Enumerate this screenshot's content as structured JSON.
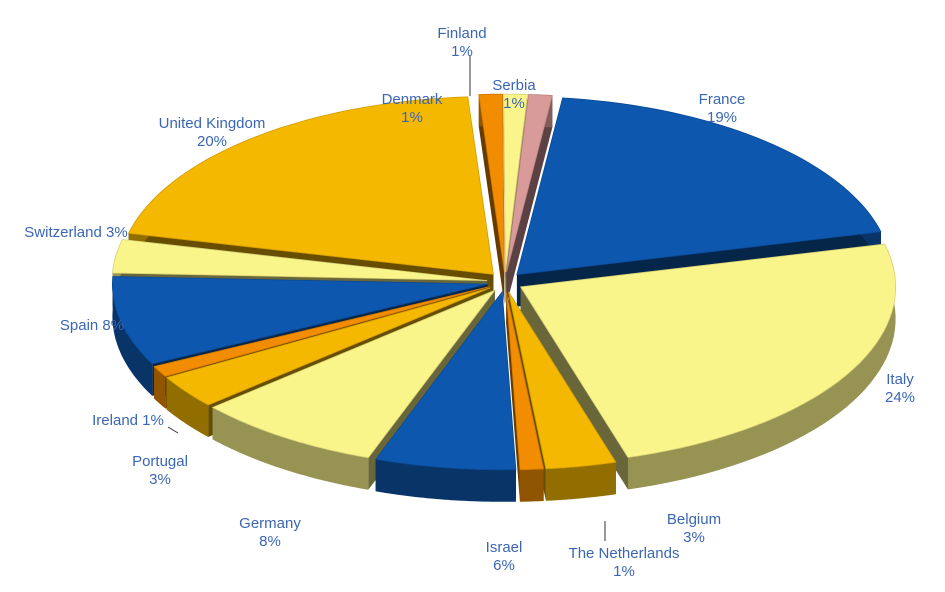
{
  "chart_data": {
    "type": "pie",
    "title": "",
    "style": "3d-exploded",
    "legend": "none",
    "slices": [
      {
        "name": "France",
        "value": 19,
        "label": "19%",
        "color": "#0D57AE"
      },
      {
        "name": "Italy",
        "value": 24,
        "label": "24%",
        "color": "#FAF58A"
      },
      {
        "name": "Belgium",
        "value": 3,
        "label": "3%",
        "color": "#F4B800"
      },
      {
        "name": "The Netherlands",
        "value": 1,
        "label": "1%",
        "color": "#F28C00"
      },
      {
        "name": "Israel",
        "value": 6,
        "label": "6%",
        "color": "#0D57AE"
      },
      {
        "name": "Germany",
        "value": 8,
        "label": "8%",
        "color": "#FAF58A"
      },
      {
        "name": "Portugal",
        "value": 3,
        "label": "3%",
        "color": "#F4B800"
      },
      {
        "name": "Ireland",
        "value": 1,
        "label": "1%",
        "color": "#F28C00"
      },
      {
        "name": "Spain",
        "value": 8,
        "label": "8%",
        "color": "#0D57AE"
      },
      {
        "name": "Switzerland",
        "value": 3,
        "label": "3%",
        "color": "#FAF58A"
      },
      {
        "name": "United Kingdom",
        "value": 20,
        "label": "20%",
        "color": "#F4B800"
      },
      {
        "name": "Denmark",
        "value": 1,
        "label": "1%",
        "color": "#F28C00"
      },
      {
        "name": "Finland",
        "value": 1,
        "label": "1%",
        "color": "#FAF58A"
      },
      {
        "name": "Serbia",
        "value": 1,
        "label": "1%",
        "color": "#D99A9A"
      }
    ]
  },
  "label_color": "#3B66B5"
}
